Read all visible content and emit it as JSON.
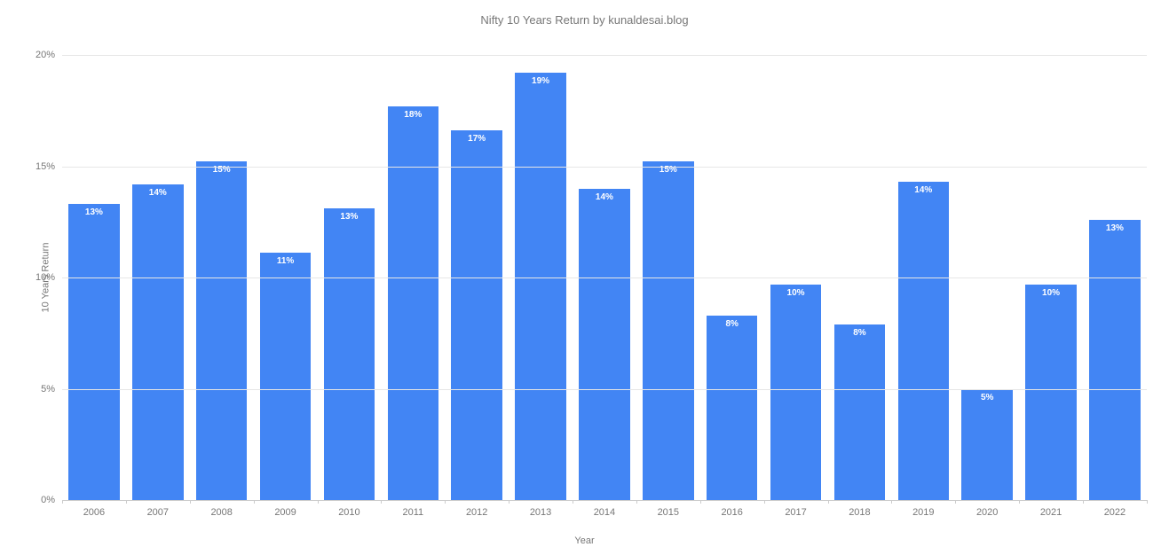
{
  "chart": {
    "type": "bar",
    "title": "Nifty 10 Years Return by kunaldesai.blog",
    "x_axis_label": "Year",
    "y_axis_label": "10 Years Return",
    "background_color": "#ffffff",
    "grid_color": "#e6e6e6",
    "baseline_color": "#cccccc",
    "text_color": "#777777",
    "bar_label_color": "#ffffff",
    "title_fontsize": 13,
    "axis_label_fontsize": 11,
    "tick_fontsize": 11,
    "bar_label_fontsize": 10,
    "bar_width_ratio": 0.8,
    "ylim": [
      0,
      20
    ],
    "ytick_step": 5,
    "yticks": [
      {
        "value": 0,
        "label": "0%"
      },
      {
        "value": 5,
        "label": "5%"
      },
      {
        "value": 10,
        "label": "10%"
      },
      {
        "value": 15,
        "label": "15%"
      },
      {
        "value": 20,
        "label": "20%"
      }
    ],
    "categories": [
      "2006",
      "2007",
      "2008",
      "2009",
      "2010",
      "2011",
      "2012",
      "2013",
      "2014",
      "2015",
      "2016",
      "2017",
      "2018",
      "2019",
      "2020",
      "2021",
      "2022"
    ],
    "values": [
      13.3,
      14.2,
      15.2,
      11.1,
      13.1,
      17.7,
      16.6,
      19.2,
      14.0,
      15.2,
      8.3,
      9.7,
      7.9,
      14.3,
      5.0,
      9.7,
      12.6
    ],
    "data_labels": [
      "13%",
      "14%",
      "15%",
      "11%",
      "13%",
      "18%",
      "17%",
      "19%",
      "14%",
      "15%",
      "8%",
      "10%",
      "8%",
      "14%",
      "5%",
      "10%",
      "13%"
    ],
    "bar_color": "#4285f4"
  }
}
